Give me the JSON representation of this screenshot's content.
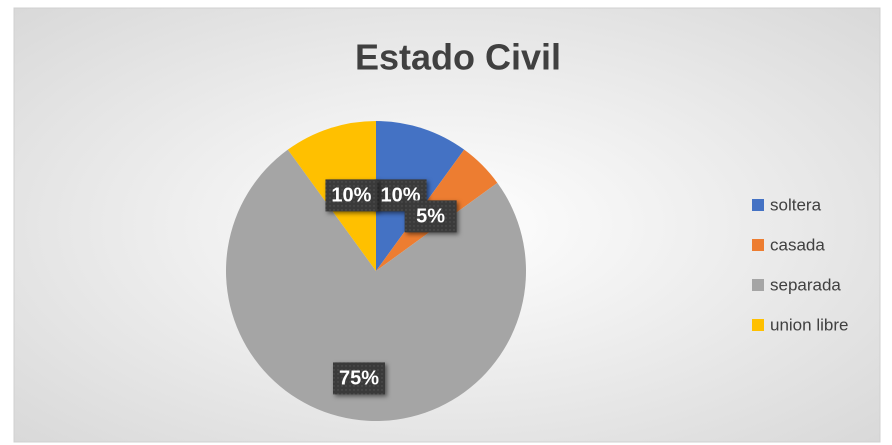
{
  "chart_data": {
    "type": "pie",
    "title": "Estado Civil",
    "categories": [
      "soltera",
      "casada",
      "separada",
      "union libre"
    ],
    "values": [
      10,
      5,
      75,
      10
    ],
    "value_labels": [
      "10%",
      "5%",
      "75%",
      "10%"
    ],
    "colors": [
      "#4472c4",
      "#ed7d31",
      "#a5a5a5",
      "#ffc000"
    ],
    "legend": "right"
  }
}
